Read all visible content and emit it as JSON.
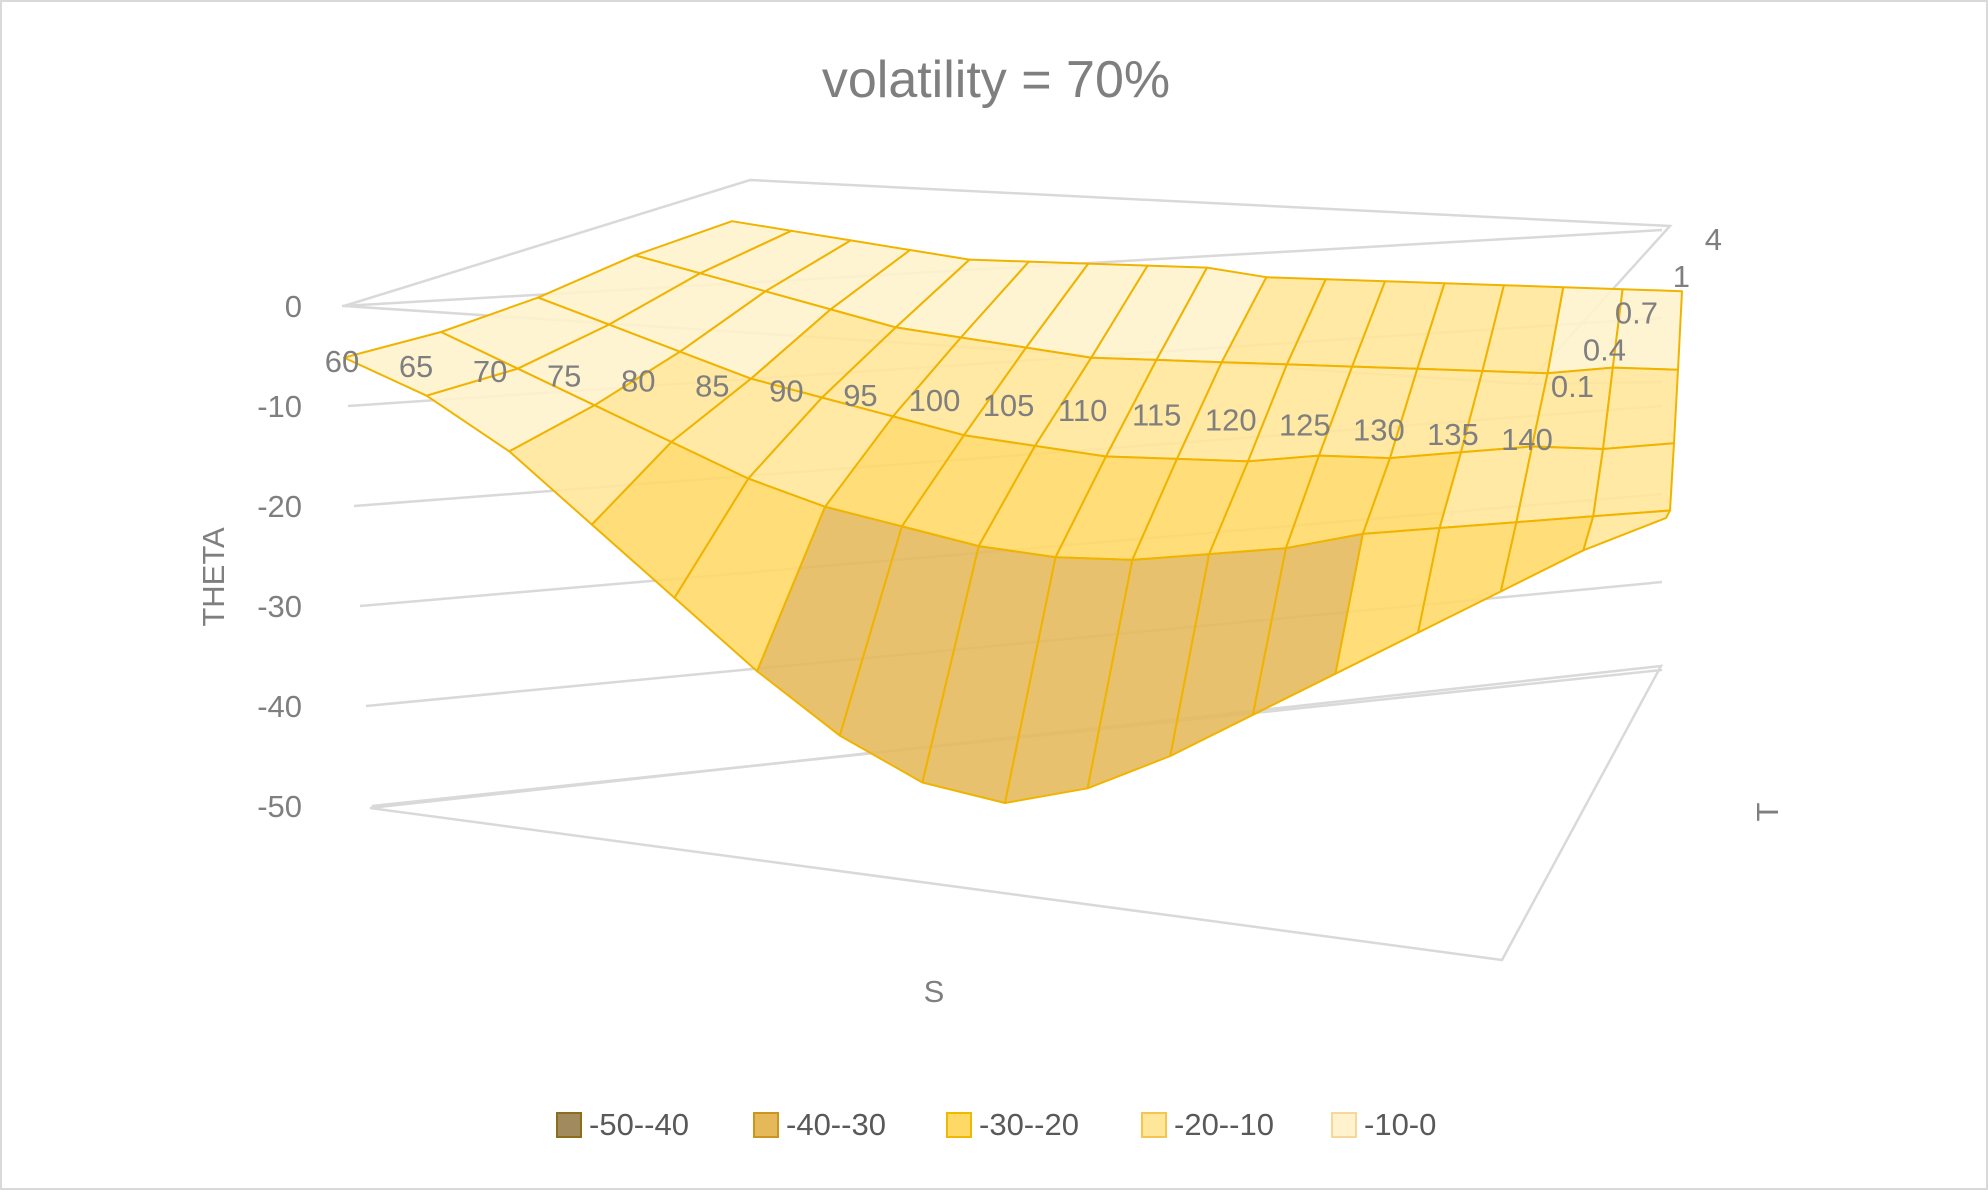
{
  "chart_data": {
    "type": "surface",
    "title": "volatility = 70%",
    "xlabel": "S",
    "ylabel": "T",
    "zlabel": "THETA",
    "zlim": [
      -50,
      0
    ],
    "z_ticks": [
      "0",
      "-10",
      "-20",
      "-30",
      "-40",
      "-50"
    ],
    "x_ticks": [
      "60",
      "65",
      "70",
      "75",
      "80",
      "85",
      "90",
      "95",
      "100",
      "105",
      "110",
      "115",
      "120",
      "125",
      "130",
      "135",
      "140"
    ],
    "y_ticks": [
      "0.1",
      "0.4",
      "0.7",
      "1",
      "4"
    ],
    "S": [
      60,
      65,
      70,
      75,
      80,
      85,
      90,
      95,
      100,
      105,
      110,
      115,
      120,
      125,
      130,
      135,
      140
    ],
    "T": [
      0.1,
      0.4,
      0.7,
      1,
      4
    ],
    "series": [
      {
        "T": 0.1,
        "values": [
          -2,
          -6,
          -12,
          -20,
          -28,
          -36,
          -43,
          -48,
          -50,
          -48,
          -44,
          -39,
          -34,
          -29,
          -24,
          -19,
          -15
        ]
      },
      {
        "T": 0.4,
        "values": [
          -3,
          -7,
          -11,
          -15,
          -19,
          -22,
          -24,
          -26,
          -27,
          -27,
          -26,
          -25,
          -23,
          -22,
          -21,
          -20,
          -19
        ]
      },
      {
        "T": 0.7,
        "values": [
          -3,
          -6,
          -9,
          -12,
          -14,
          -16,
          -18,
          -19,
          -20,
          -20,
          -20,
          -19,
          -19,
          -18,
          -17,
          -17,
          -16
        ]
      },
      {
        "T": 1,
        "values": [
          -2,
          -4,
          -6,
          -8,
          -10,
          -11,
          -12,
          -13,
          -13,
          -13,
          -13,
          -13,
          -13,
          -13,
          -13,
          -12,
          -12
        ]
      },
      {
        "T": 4,
        "values": [
          -2,
          -3,
          -4,
          -5,
          -6,
          -6,
          -6,
          -6,
          -6,
          -7,
          -7,
          -7,
          -7,
          -7,
          -7,
          -7,
          -7
        ]
      }
    ],
    "legend_position": "bottom",
    "legend": [
      {
        "label": "-50--40",
        "color": "#a08a5e",
        "border": "#8b6d1a"
      },
      {
        "label": "-40--30",
        "color": "#e5b85a",
        "border": "#c9971f"
      },
      {
        "label": "-30--20",
        "color": "#ffd966",
        "border": "#f0b800"
      },
      {
        "label": "-20--10",
        "color": "#ffe699",
        "border": "#f5c451"
      },
      {
        "label": "-10-0",
        "color": "#fff2cc",
        "border": "#f8d79a"
      }
    ],
    "colors": {
      "mesh_line": "#f0b400",
      "grid": "#d9d9d9",
      "text": "#7f7f7f"
    }
  }
}
